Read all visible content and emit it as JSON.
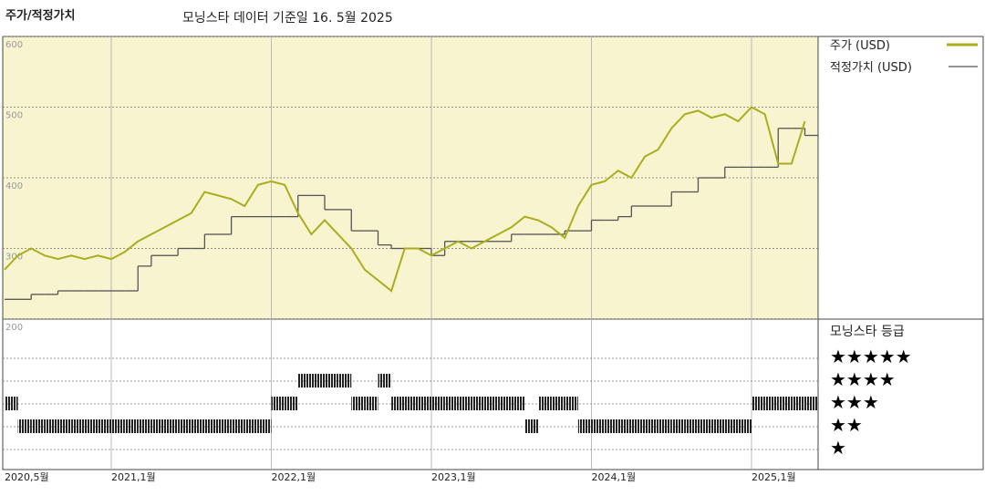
{
  "chart_data": {
    "type": "line",
    "title": "주가/적정가치",
    "subtitle": "모닝스타 데이터 기준일 16. 5월 2025",
    "x": [
      "2020-05",
      "2020-06",
      "2020-07",
      "2020-08",
      "2020-09",
      "2020-10",
      "2020-11",
      "2020-12",
      "2021-01",
      "2021-02",
      "2021-03",
      "2021-04",
      "2021-05",
      "2021-06",
      "2021-07",
      "2021-08",
      "2021-09",
      "2021-10",
      "2021-11",
      "2021-12",
      "2022-01",
      "2022-02",
      "2022-03",
      "2022-04",
      "2022-05",
      "2022-06",
      "2022-07",
      "2022-08",
      "2022-09",
      "2022-10",
      "2022-11",
      "2022-12",
      "2023-01",
      "2023-02",
      "2023-03",
      "2023-04",
      "2023-05",
      "2023-06",
      "2023-07",
      "2023-08",
      "2023-09",
      "2023-10",
      "2023-11",
      "2023-12",
      "2024-01",
      "2024-02",
      "2024-03",
      "2024-04",
      "2024-05",
      "2024-06",
      "2024-07",
      "2024-08",
      "2024-09",
      "2024-10",
      "2024-11",
      "2024-12",
      "2025-01",
      "2025-02",
      "2025-03",
      "2025-04",
      "2025-05"
    ],
    "xticks": [
      {
        "value": "2020-05",
        "label": "2020,5월"
      },
      {
        "value": "2021-01",
        "label": "2021,1월"
      },
      {
        "value": "2022-01",
        "label": "2022,1월"
      },
      {
        "value": "2023-01",
        "label": "2023,1월"
      },
      {
        "value": "2024-01",
        "label": "2024,1월"
      },
      {
        "value": "2025-01",
        "label": "2025,1월"
      }
    ],
    "series": [
      {
        "name": "주가 (USD)",
        "color": "#a9ad1e",
        "values": [
          270,
          290,
          300,
          290,
          285,
          290,
          285,
          290,
          285,
          295,
          310,
          320,
          330,
          340,
          350,
          380,
          375,
          370,
          360,
          390,
          395,
          390,
          350,
          320,
          340,
          320,
          300,
          270,
          255,
          240,
          300,
          300,
          290,
          300,
          310,
          300,
          310,
          320,
          330,
          345,
          340,
          330,
          315,
          360,
          390,
          395,
          410,
          400,
          430,
          440,
          470,
          490,
          495,
          485,
          490,
          480,
          500,
          490,
          420,
          420,
          480
        ]
      },
      {
        "name": "적정가치 (USD)",
        "color": "#555555",
        "values": [
          228,
          228,
          235,
          235,
          240,
          240,
          240,
          240,
          240,
          240,
          275,
          290,
          290,
          300,
          300,
          320,
          320,
          345,
          345,
          345,
          345,
          345,
          375,
          375,
          355,
          355,
          325,
          325,
          305,
          300,
          300,
          300,
          290,
          310,
          310,
          310,
          310,
          310,
          320,
          320,
          320,
          320,
          325,
          325,
          340,
          340,
          345,
          360,
          360,
          360,
          380,
          380,
          400,
          400,
          415,
          415,
          415,
          415,
          470,
          470,
          460
        ]
      }
    ],
    "ylim": [
      200,
      600
    ],
    "yticks": [
      200,
      300,
      400,
      500,
      600
    ],
    "rating_title": "모닝스타 등급",
    "rating_labels": [
      "★★★★★",
      "★★★★",
      "★★★",
      "★★",
      "★"
    ],
    "ratings": [
      3,
      2,
      2,
      2,
      2,
      2,
      2,
      2,
      2,
      2,
      2,
      2,
      2,
      2,
      2,
      2,
      2,
      2,
      2,
      2,
      3,
      3,
      4,
      4,
      4,
      4,
      3,
      3,
      4,
      3,
      3,
      3,
      3,
      3,
      3,
      3,
      3,
      3,
      3,
      2,
      3,
      3,
      3,
      2,
      2,
      2,
      2,
      2,
      2,
      2,
      2,
      2,
      2,
      2,
      2,
      2,
      3,
      3,
      3,
      3,
      3
    ]
  }
}
